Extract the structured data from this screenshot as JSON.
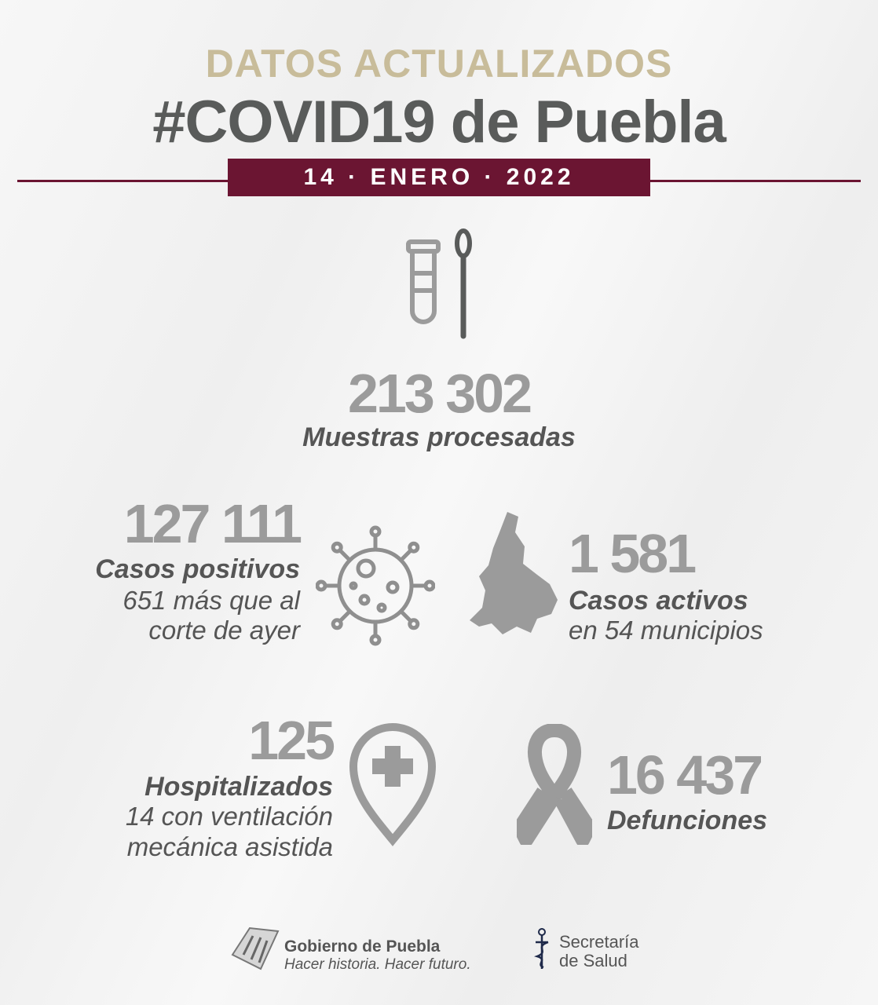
{
  "header": {
    "title": "DATOS ACTUALIZADOS",
    "subtitle": "#COVID19 de Puebla",
    "date": "14 · ENERO · 2022"
  },
  "colors": {
    "gold": "#c8bc9a",
    "dark_gray": "#595b5a",
    "maroon": "#6b1532",
    "number_gray": "#9b9b9b"
  },
  "stats": {
    "samples": {
      "value": "213 302",
      "label": "Muestras procesadas",
      "icon": "test-tube-swab-icon"
    },
    "positive": {
      "value": "127 111",
      "label": "Casos positivos",
      "line1": "651 más que al",
      "line2": "corte de ayer",
      "icon": "virus-icon"
    },
    "active": {
      "value": "1 581",
      "label": "Casos activos",
      "line1": "en 54 municipios",
      "icon": "puebla-map-icon"
    },
    "hospitalized": {
      "value": "125",
      "label": "Hospitalizados",
      "line1": "14 con ventilación",
      "line2": "mecánica asistida",
      "icon": "hospital-pin-icon"
    },
    "deaths": {
      "value": "16 437",
      "label": "Defunciones",
      "icon": "ribbon-icon"
    }
  },
  "footer": {
    "gov_name": "Gobierno de Puebla",
    "gov_slogan": "Hacer historia. Hacer futuro.",
    "health_line1": "Secretaría",
    "health_line2": "de Salud"
  }
}
